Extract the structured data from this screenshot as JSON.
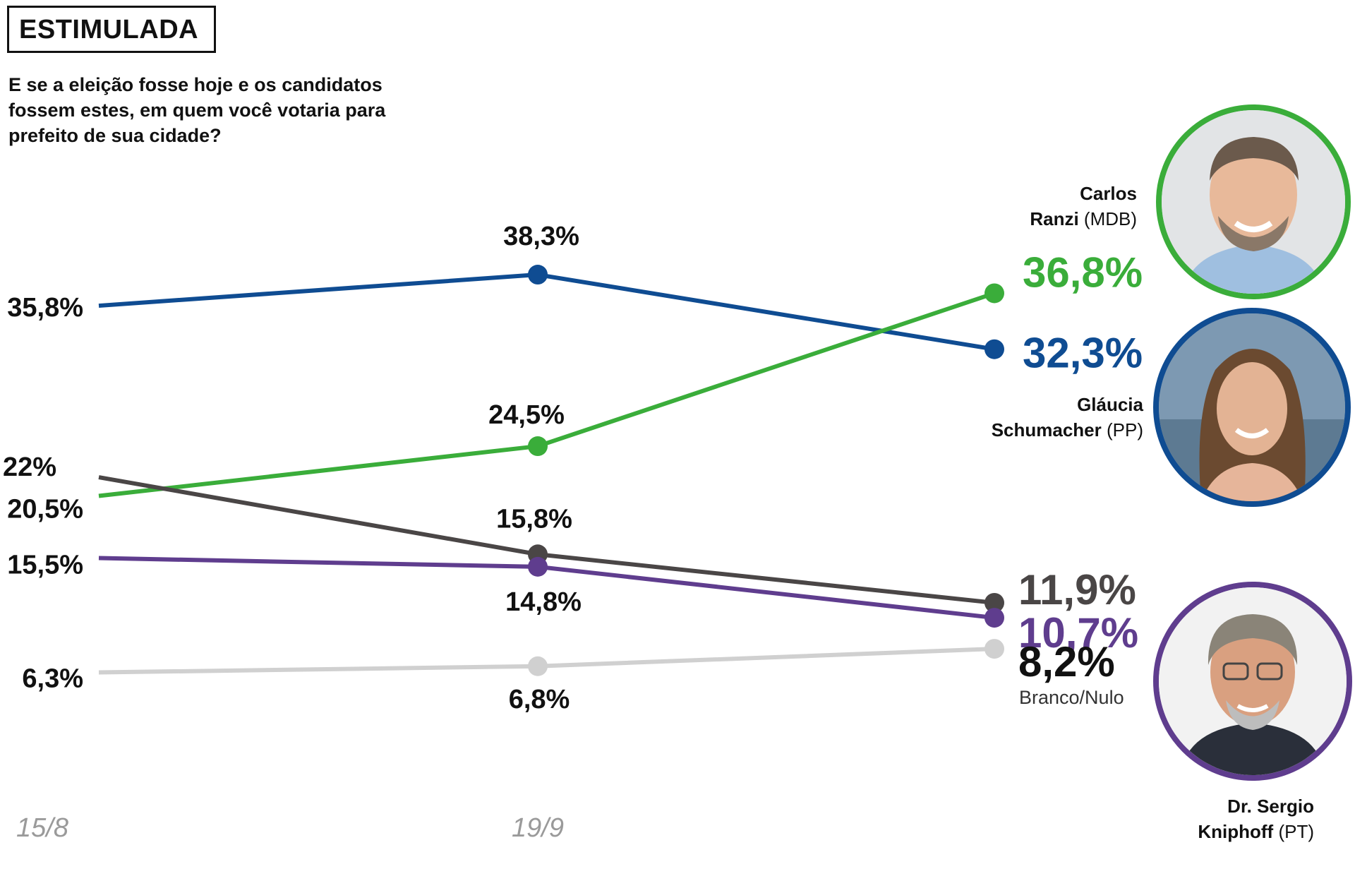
{
  "title": "ESTIMULADA",
  "subtitle": "E se a eleição fosse hoje e os candidatos fossem estes, em quem você votaria para prefeito de sua cidade?",
  "colors": {
    "ranzi": "#3aad3a",
    "glaucia": "#0f4c92",
    "branco_nulo": "#d0d0d0",
    "gray_series": "#4a4646",
    "kniphoff": "#5f3d8e",
    "date_label": "#9a9a9a"
  },
  "candidates": {
    "ranzi": {
      "name_line1": "Carlos",
      "name_line2": "Ranzi",
      "party": "(MDB)"
    },
    "glaucia": {
      "name_line1": "Gláucia",
      "name_line2": "Schumacher",
      "party": "(PP)"
    },
    "kniphoff": {
      "name_line1": "Dr. Sergio",
      "name_line2": "Kniphoff",
      "party": "(PT)"
    }
  },
  "chart_data": {
    "type": "line",
    "x": [
      "15/8",
      "19/9",
      ""
    ],
    "ylim": [
      0,
      45
    ],
    "series": [
      {
        "name": "Gláucia Schumacher (PP)",
        "color": "#0f4c92",
        "values": [
          35.8,
          38.3,
          32.3
        ],
        "labels": [
          "35,8%",
          "38,3%",
          "32,3%"
        ]
      },
      {
        "name": "Carlos Ranzi (MDB)",
        "color": "#3aad3a",
        "values": [
          20.5,
          24.5,
          36.8
        ],
        "labels": [
          "20,5%",
          "24,5%",
          "36,8%"
        ]
      },
      {
        "name": "",
        "color": "#4a4646",
        "values": [
          22,
          15.8,
          11.9
        ],
        "labels": [
          "22%",
          "15,8%",
          "11,9%"
        ]
      },
      {
        "name": "Dr. Sergio Kniphoff (PT)",
        "color": "#5f3d8e",
        "values": [
          15.5,
          14.8,
          10.7
        ],
        "labels": [
          "15,5%",
          "14,8%",
          "10,7%"
        ]
      },
      {
        "name": "Branco/Nulo",
        "color": "#d0d0d0",
        "values": [
          6.3,
          6.8,
          8.2
        ],
        "labels": [
          "6,3%",
          "6,8%",
          "8,2%"
        ]
      }
    ]
  }
}
